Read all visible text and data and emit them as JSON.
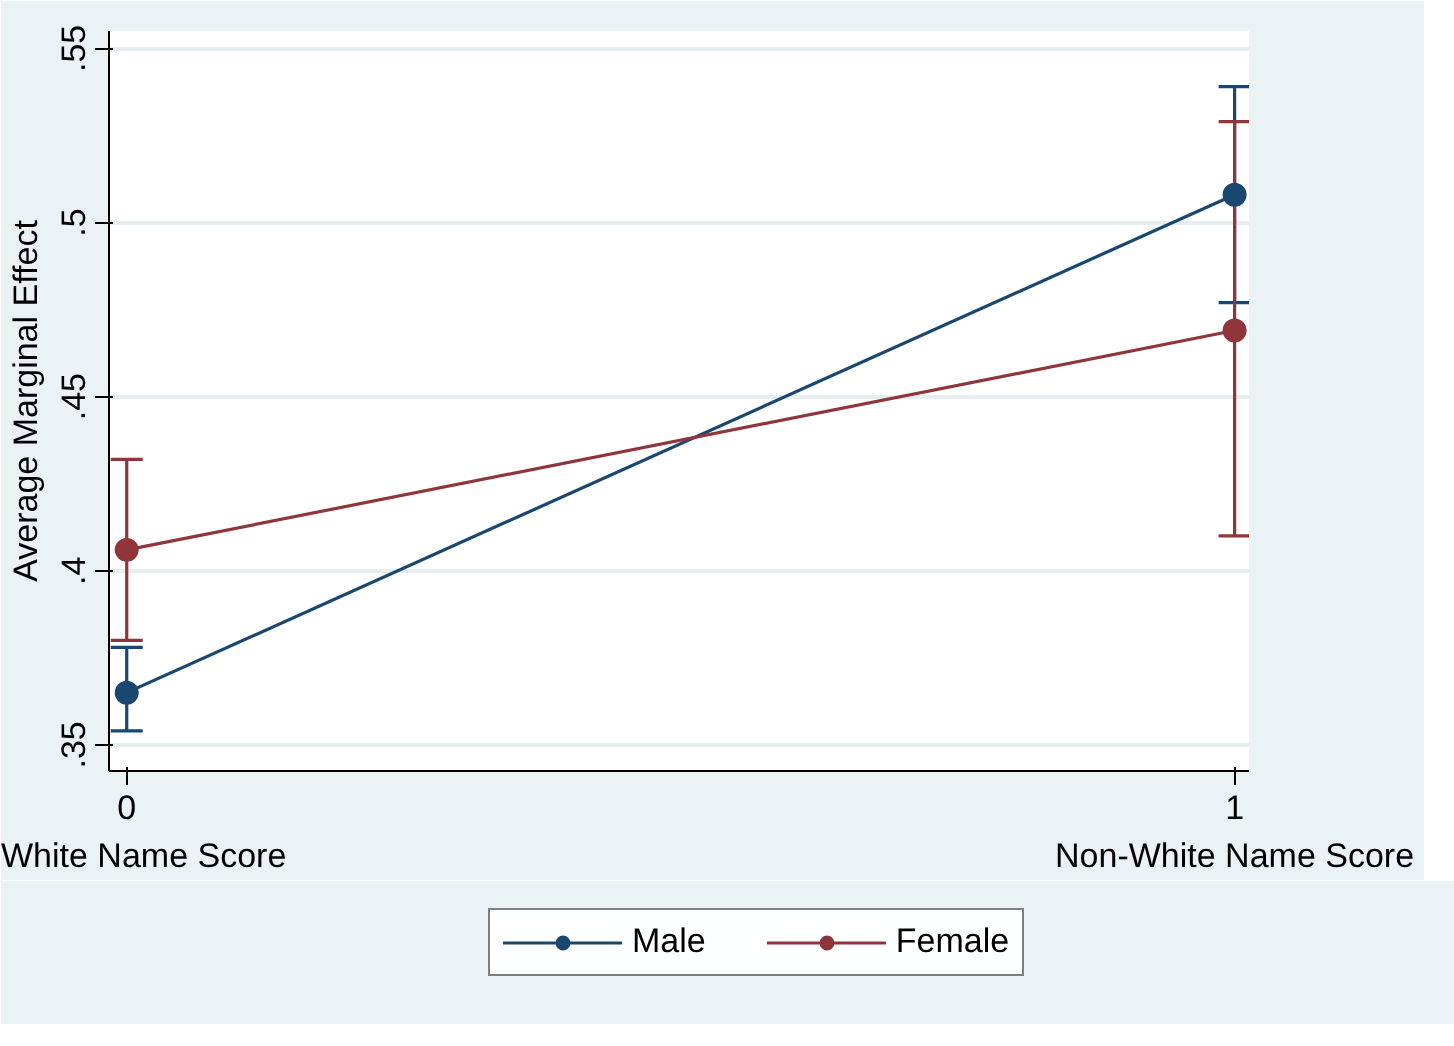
{
  "chart_data": {
    "type": "line",
    "ylabel": "Average Marginal Effect",
    "x": [
      0,
      1
    ],
    "series": [
      {
        "name": "Male",
        "color": "#1a476f",
        "values": [
          0.365,
          0.508
        ],
        "errors": [
          [
            0.354,
            0.378
          ],
          [
            0.477,
            0.539
          ]
        ]
      },
      {
        "name": "Female",
        "color": "#90353b",
        "values": [
          0.406,
          0.469
        ],
        "errors": [
          [
            0.38,
            0.432
          ],
          [
            0.41,
            0.529
          ]
        ]
      }
    ],
    "xlim": [
      -0.016,
      1.013
    ],
    "xticks": [
      0,
      1
    ],
    "ylim": [
      0.3425,
      0.555
    ],
    "yticks": [
      {
        "value": 0.35,
        "label": ".35"
      },
      {
        "value": 0.4,
        "label": ".4"
      },
      {
        "value": 0.45,
        "label": ".45"
      },
      {
        "value": 0.5,
        "label": ".5"
      },
      {
        "value": 0.55,
        "label": ".55"
      }
    ],
    "annotations": [
      "White Name Score",
      "Non-White Name Score"
    ],
    "grid": "y",
    "legend": "bottom",
    "marker": "circle",
    "line_style": "solid"
  }
}
